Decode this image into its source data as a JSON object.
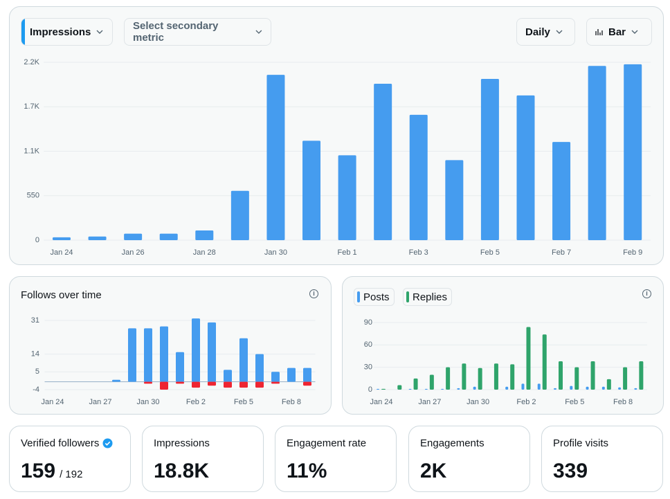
{
  "controls": {
    "primary_metric": "Impressions",
    "secondary_metric": "Select secondary metric",
    "interval": "Daily",
    "chart_type": "Bar"
  },
  "chart_data": [
    {
      "type": "bar",
      "categories": [
        "Jan 24",
        null,
        "Jan 26",
        null,
        "Jan 28",
        null,
        "Jan 30",
        null,
        "Feb 1",
        null,
        "Feb 3",
        null,
        "Feb 5",
        null,
        "Feb 7",
        null,
        "Feb 9"
      ],
      "series": [
        {
          "color": "#459cef",
          "values": [
            35,
            45,
            80,
            80,
            120,
            610,
            2045,
            1230,
            1050,
            1935,
            1550,
            990,
            1995,
            1790,
            1215,
            2155,
            2175
          ]
        }
      ],
      "ylim": [
        0,
        2200
      ],
      "yticks": [
        0,
        550,
        {
          "value": 1100,
          "label": "1.1K"
        },
        {
          "value": 1650,
          "label": "1.7K"
        },
        {
          "value": 2200,
          "label": "2.2K"
        }
      ],
      "grid": true
    },
    {
      "type": "bar",
      "title": "Follows over time",
      "stacked": true,
      "categories": [
        "Jan 24",
        null,
        null,
        "Jan 27",
        null,
        null,
        "Jan 30",
        null,
        null,
        "Feb 2",
        null,
        null,
        "Feb 5",
        null,
        null,
        "Feb 8",
        null
      ],
      "series": [
        {
          "color": "#459cef",
          "values": [
            0,
            0,
            0,
            0,
            1,
            27,
            27,
            28,
            15,
            32,
            30,
            6,
            22,
            14,
            5,
            7,
            7
          ]
        },
        {
          "color": "#ee2532",
          "values": [
            0,
            0,
            0,
            0,
            0,
            0,
            -1,
            -4,
            -1,
            -3,
            -2,
            -3,
            -3,
            -3,
            -1,
            0,
            -2
          ]
        }
      ],
      "ylim": [
        -4,
        31
      ],
      "yticks": [
        -4,
        5,
        14,
        31
      ],
      "grid": true
    },
    {
      "type": "bar",
      "categories": [
        "Jan 24",
        null,
        null,
        "Jan 27",
        null,
        null,
        "Jan 30",
        null,
        null,
        "Feb 2",
        null,
        null,
        "Feb 5",
        null,
        null,
        "Feb 8",
        null
      ],
      "series": [
        {
          "name": "Posts",
          "color": "#459cef",
          "values": [
            1,
            0,
            1,
            1,
            1,
            2,
            4,
            0,
            4,
            8,
            8,
            2,
            5,
            4,
            4,
            3,
            2
          ]
        },
        {
          "name": "Replies",
          "color": "#2fa46b",
          "values": [
            1,
            6,
            15,
            20,
            30,
            35,
            29,
            35,
            34,
            84,
            74,
            38,
            30,
            38,
            14,
            30,
            38
          ]
        }
      ],
      "ylim": [
        0,
        90
      ],
      "yticks": [
        0,
        30,
        60,
        90
      ],
      "grid": true
    }
  ],
  "stats": [
    {
      "label": "Verified followers",
      "value": "159",
      "total": "/ 192"
    },
    {
      "label": "Impressions",
      "value": "18.8K"
    },
    {
      "label": "Engagement rate",
      "value": "11%"
    },
    {
      "label": "Engagements",
      "value": "2K"
    },
    {
      "label": "Profile visits",
      "value": "339"
    }
  ]
}
